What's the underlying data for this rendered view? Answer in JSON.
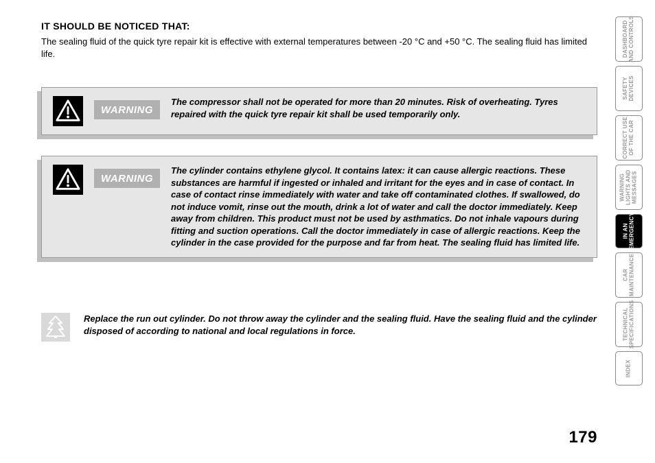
{
  "heading": "IT SHOULD BE NOTICED THAT:",
  "intro": "The sealing fluid of the quick tyre repair kit is effective with external temperatures between -20 °C and +50 °C. The sealing fluid has limited life.",
  "warnings": [
    {
      "label": "WARNING",
      "text": "The compressor shall not be operated for more than 20 minutes. Risk of overheating. Tyres repaired with the quick tyre repair kit shall be used temporarily only."
    },
    {
      "label": "WARNING",
      "text": "The cylinder contains ethylene glycol. It contains latex: it can cause allergic reactions. These substances are harmful if ingested or inhaled and irritant for the eyes and in case of contact. In case of contact rinse immediately with water and take off contaminated clothes. If swallowed, do not induce vomit, rinse out the mouth, drink a lot of water and call the doctor immediately. Keep away from children. This product must not be used by asthmatics. Do not inhale vapours during fitting and suction operations. Call the doctor immediately in case of allergic reactions. Keep the cylinder in the case provided for the purpose and far from heat. The sealing fluid has limited life."
    }
  ],
  "eco_text": "Replace the run out cylinder. Do not throw away the cylinder and the sealing fluid. Have the sealing fluid and the cylinder disposed of according to national and local regulations in force.",
  "page_number": "179",
  "tabs": [
    {
      "line1": "DASHBOARD",
      "line2": "AND CONTROLS",
      "active": false
    },
    {
      "line1": "SAFETY",
      "line2": "DEVICES",
      "active": false
    },
    {
      "line1": "CORRECT USE",
      "line2": "OF THE CAR",
      "active": false
    },
    {
      "line1": "WARNING",
      "line2": "LIGHTS AND",
      "line3": "MESSAGES",
      "active": false
    },
    {
      "line1": "IN AN",
      "line2": "EMERGENCY",
      "active": true,
      "short": true
    },
    {
      "line1": "CAR",
      "line2": "MAINTENANCE",
      "active": false
    },
    {
      "line1": "TECHNICAL",
      "line2": "SPECIFICATIONS",
      "active": false
    },
    {
      "line1": "INDEX",
      "active": false,
      "short": true
    }
  ],
  "colors": {
    "box_bg": "#e6e6e6",
    "box_shadow": "#bfbfbf",
    "label_bg": "#b0b0b0",
    "tab_inactive_text": "#9a9a9a",
    "eco_bg": "#d9d9d9"
  }
}
